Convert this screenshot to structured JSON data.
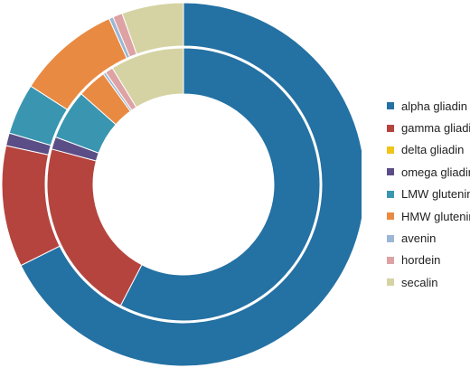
{
  "chart_data": {
    "type": "pie",
    "variant": "nested-donut",
    "legend_position": "right",
    "categories": [
      "alpha gliadin",
      "gamma gliadin",
      "delta gliadin",
      "omega gliadin",
      "LMW glutenin",
      "HMW glutenin",
      "avenin",
      "hordein",
      "secalin"
    ],
    "colors": [
      "#2471a3",
      "#b5443f",
      "#f0c419",
      "#5b4e86",
      "#3a96b0",
      "#e98a43",
      "#9bb7d4",
      "#dea2a4",
      "#d5d3a3"
    ],
    "series": [
      {
        "ring": "outer",
        "values": [
          71.5,
          11.4,
          0.0,
          1.2,
          4.8,
          9.7,
          0.4,
          0.9,
          5.8
        ]
      },
      {
        "ring": "inner",
        "values": [
          54.8,
          20.5,
          0.0,
          1.4,
          5.6,
          3.3,
          0.3,
          0.9,
          8.3
        ]
      }
    ]
  }
}
